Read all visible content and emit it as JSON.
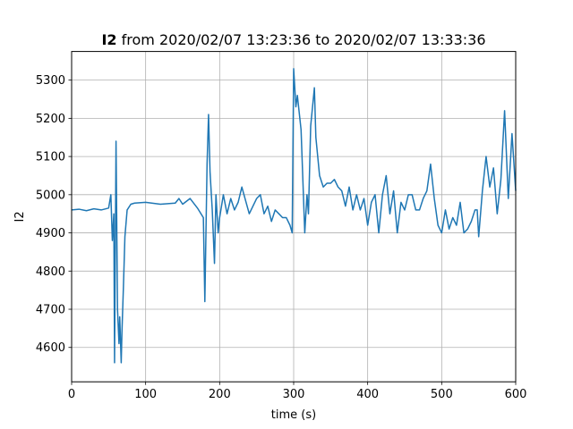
{
  "chart_data": {
    "type": "line",
    "title_bold": "I2",
    "title_rest": " from 2020/02/07 13:23:36 to 2020/02/07 13:33:36",
    "xlabel": "time (s)",
    "ylabel": "I2",
    "xlim": [
      0,
      600
    ],
    "ylim": [
      4510,
      5375
    ],
    "xticks": [
      0,
      100,
      200,
      300,
      400,
      500,
      600
    ],
    "yticks": [
      4600,
      4700,
      4800,
      4900,
      5000,
      5100,
      5200,
      5300
    ],
    "grid": true,
    "line_color": "#1f77b4",
    "series": [
      {
        "x": [
          0,
          10,
          20,
          30,
          40,
          50,
          53,
          55,
          57,
          58,
          60,
          62,
          64,
          65,
          67,
          68,
          70,
          72,
          75,
          80,
          85,
          100,
          120,
          140,
          145,
          150,
          160,
          170,
          178,
          180,
          183,
          185,
          187,
          190,
          193,
          195,
          198,
          200,
          205,
          210,
          215,
          220,
          225,
          230,
          240,
          250,
          255,
          260,
          265,
          270,
          275,
          280,
          285,
          290,
          295,
          298,
          300,
          303,
          305,
          310,
          315,
          318,
          320,
          323,
          325,
          328,
          330,
          335,
          340,
          345,
          350,
          355,
          360,
          365,
          370,
          375,
          380,
          385,
          390,
          395,
          400,
          405,
          410,
          415,
          420,
          425,
          430,
          435,
          440,
          445,
          450,
          455,
          460,
          465,
          470,
          475,
          480,
          485,
          490,
          495,
          500,
          505,
          510,
          515,
          520,
          525,
          530,
          535,
          540,
          545,
          548,
          550,
          555,
          560,
          565,
          570,
          575,
          580,
          585,
          590,
          595,
          600
        ],
        "y": [
          4960,
          4962,
          4958,
          4963,
          4960,
          4965,
          5000,
          4880,
          4950,
          4560,
          5140,
          4700,
          4610,
          4680,
          4560,
          4640,
          4760,
          4890,
          4960,
          4975,
          4978,
          4980,
          4975,
          4978,
          4990,
          4975,
          4990,
          4965,
          4940,
          4720,
          5080,
          5210,
          5060,
          4960,
          4820,
          5000,
          4900,
          4940,
          5000,
          4950,
          4990,
          4960,
          4980,
          5020,
          4950,
          4990,
          5000,
          4950,
          4970,
          4930,
          4960,
          4950,
          4940,
          4940,
          4920,
          4900,
          5330,
          5230,
          5260,
          5170,
          4900,
          5000,
          4950,
          5180,
          5220,
          5280,
          5150,
          5050,
          5020,
          5030,
          5030,
          5040,
          5020,
          5010,
          4970,
          5020,
          4960,
          5000,
          4960,
          4990,
          4920,
          4980,
          5000,
          4900,
          5000,
          5050,
          4950,
          5010,
          4900,
          4980,
          4960,
          5000,
          5000,
          4960,
          4960,
          4990,
          5010,
          5080,
          4990,
          4920,
          4900,
          4960,
          4910,
          4940,
          4920,
          4980,
          4900,
          4910,
          4930,
          4960,
          4960,
          4890,
          5010,
          5100,
          5020,
          5070,
          4950,
          5040,
          5220,
          4990,
          5160,
          5010
        ]
      }
    ]
  }
}
